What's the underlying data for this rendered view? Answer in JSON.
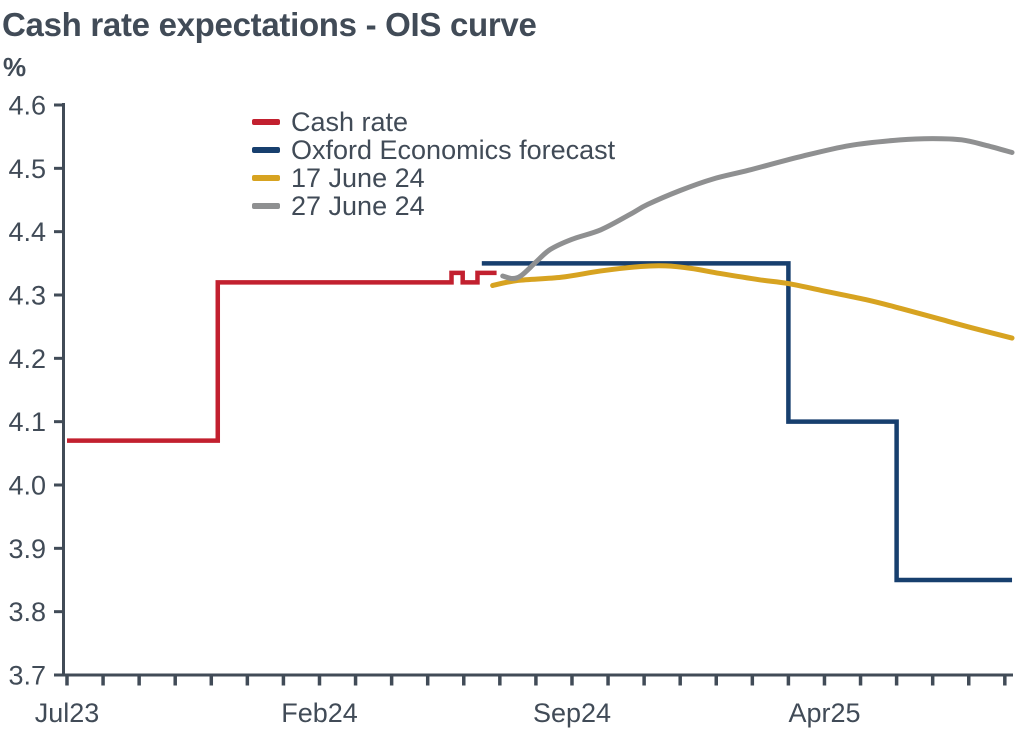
{
  "page": {
    "background_color": "#ffffff",
    "text_color": "#414b57"
  },
  "chart_data": {
    "type": "line",
    "title": "Cash rate expectations - OIS curve",
    "unit_label": "%",
    "axis_color": "#414b57",
    "legend_position": "top-left-inside",
    "grid": "off",
    "x_axis": {
      "unit": "months-since-Jul-2023",
      "min": 0,
      "max": 26.2,
      "minor_tick_every": 1,
      "minor_tick_count": 27,
      "labeled_ticks": [
        {
          "m": 0,
          "label": "Jul23"
        },
        {
          "m": 7,
          "label": "Feb24"
        },
        {
          "m": 14,
          "label": "Sep24"
        },
        {
          "m": 21,
          "label": "Apr25"
        }
      ]
    },
    "y_axis": {
      "min": 3.7,
      "max": 4.6,
      "tick_step": 0.1,
      "tick_labels": [
        "4.6",
        "4.5",
        "4.4",
        "4.3",
        "4.2",
        "4.1",
        "4.0",
        "3.9",
        "3.8",
        "3.7"
      ]
    },
    "series": [
      {
        "name": "Cash rate",
        "color": "#c2202f",
        "style": "step",
        "stroke_width": 4.5,
        "points": [
          [
            0,
            4.07
          ],
          [
            4.18,
            4.07
          ],
          [
            4.18,
            4.32
          ],
          [
            10.66,
            4.32
          ],
          [
            10.66,
            4.335
          ],
          [
            10.97,
            4.335
          ],
          [
            10.97,
            4.32
          ],
          [
            11.38,
            4.32
          ],
          [
            11.38,
            4.335
          ],
          [
            11.91,
            4.335
          ]
        ]
      },
      {
        "name": "Oxford Economics forecast",
        "color": "#173f6e",
        "style": "step",
        "stroke_width": 4.5,
        "points": [
          [
            11.5,
            4.35
          ],
          [
            20.0,
            4.35
          ],
          [
            20.0,
            4.1
          ],
          [
            23.0,
            4.1
          ],
          [
            23.0,
            3.85
          ],
          [
            26.2,
            3.85
          ]
        ]
      },
      {
        "name": "17 June 24",
        "color": "#d7a321",
        "style": "smooth",
        "stroke_width": 5,
        "points": [
          [
            11.8,
            4.315
          ],
          [
            12.5,
            4.323
          ],
          [
            13.7,
            4.328
          ],
          [
            14.8,
            4.338
          ],
          [
            15.9,
            4.345
          ],
          [
            16.6,
            4.346
          ],
          [
            17.3,
            4.342
          ],
          [
            18.1,
            4.334
          ],
          [
            19.2,
            4.324
          ],
          [
            20.0,
            4.318
          ],
          [
            21.1,
            4.305
          ],
          [
            22.2,
            4.292
          ],
          [
            23.1,
            4.279
          ],
          [
            24.2,
            4.262
          ],
          [
            25.1,
            4.248
          ],
          [
            26.2,
            4.232
          ]
        ]
      },
      {
        "name": "27 June 24",
        "color": "#8f9091",
        "style": "smooth",
        "stroke_width": 5,
        "points": [
          [
            12.08,
            4.33
          ],
          [
            12.35,
            4.326
          ],
          [
            12.6,
            4.331
          ],
          [
            13.0,
            4.352
          ],
          [
            13.4,
            4.372
          ],
          [
            14.0,
            4.388
          ],
          [
            14.8,
            4.403
          ],
          [
            15.6,
            4.427
          ],
          [
            16.1,
            4.443
          ],
          [
            17.0,
            4.465
          ],
          [
            17.9,
            4.483
          ],
          [
            18.9,
            4.497
          ],
          [
            20.3,
            4.518
          ],
          [
            21.7,
            4.536
          ],
          [
            23.1,
            4.545
          ],
          [
            24.0,
            4.547
          ],
          [
            24.8,
            4.545
          ],
          [
            25.5,
            4.536
          ],
          [
            26.2,
            4.525
          ]
        ]
      }
    ]
  }
}
